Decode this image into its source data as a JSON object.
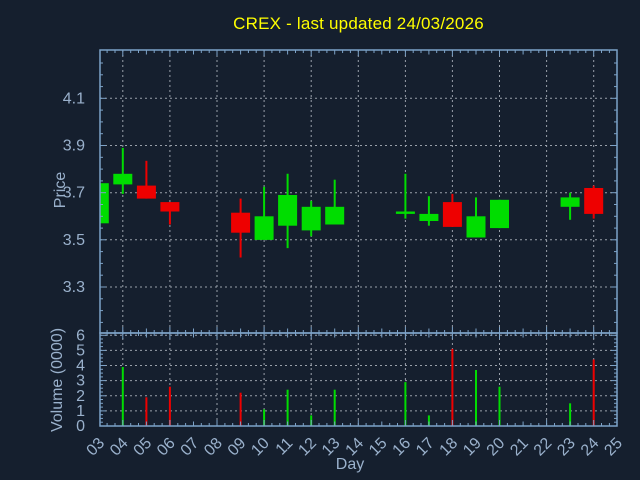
{
  "figure": {
    "background": "#151f2e"
  },
  "colors": {
    "title": "#ffff00",
    "text": "#9ab1cc",
    "axis": "#7da3c8",
    "grid": "#c6cbd4",
    "up": "#00dd00",
    "down": "#ee0000"
  },
  "chart_data": [
    {
      "type": "candlestick",
      "title": "CREX - last updated 24/03/2026",
      "xlabel": "Day",
      "ylabel": "Price",
      "ylim": [
        3.105,
        4.305
      ],
      "yticks": [
        3.3,
        3.5,
        3.7,
        3.9,
        4.1
      ],
      "xlim": [
        3.03,
        24.99
      ],
      "xtick_labels": [
        "03",
        "04",
        "05",
        "06",
        "07",
        "08",
        "09",
        "10",
        "11",
        "12",
        "13",
        "14",
        "15",
        "16",
        "17",
        "18",
        "19",
        "20",
        "21",
        "22",
        "23",
        "24",
        "25"
      ],
      "grid": "dashed, horizontal at yticks, vertical every 2 days",
      "candles": [
        {
          "day": 3,
          "open": 3.57,
          "high": 3.74,
          "low": 3.57,
          "close": 3.74,
          "dir": "up"
        },
        {
          "day": 4,
          "open": 3.735,
          "high": 3.89,
          "low": 3.695,
          "close": 3.78,
          "dir": "up"
        },
        {
          "day": 5,
          "open": 3.73,
          "high": 3.835,
          "low": 3.675,
          "close": 3.675,
          "dir": "down"
        },
        {
          "day": 6,
          "open": 3.66,
          "high": 3.66,
          "low": 3.565,
          "close": 3.62,
          "dir": "down"
        },
        {
          "day": 9,
          "open": 3.615,
          "high": 3.675,
          "low": 3.425,
          "close": 3.53,
          "dir": "down"
        },
        {
          "day": 10,
          "open": 3.5,
          "high": 3.725,
          "low": 3.5,
          "close": 3.6,
          "dir": "up"
        },
        {
          "day": 11,
          "open": 3.56,
          "high": 3.78,
          "low": 3.465,
          "close": 3.69,
          "dir": "up"
        },
        {
          "day": 12,
          "open": 3.54,
          "high": 3.665,
          "low": 3.515,
          "close": 3.64,
          "dir": "up"
        },
        {
          "day": 13,
          "open": 3.565,
          "high": 3.755,
          "low": 3.565,
          "close": 3.64,
          "dir": "up"
        },
        {
          "day": 16,
          "open": 3.61,
          "high": 3.78,
          "low": 3.59,
          "close": 3.62,
          "dir": "up"
        },
        {
          "day": 17,
          "open": 3.58,
          "high": 3.685,
          "low": 3.56,
          "close": 3.61,
          "dir": "up"
        },
        {
          "day": 18,
          "open": 3.66,
          "high": 3.695,
          "low": 3.555,
          "close": 3.555,
          "dir": "down"
        },
        {
          "day": 19,
          "open": 3.51,
          "high": 3.68,
          "low": 3.51,
          "close": 3.6,
          "dir": "up"
        },
        {
          "day": 20,
          "open": 3.55,
          "high": 3.67,
          "low": 3.55,
          "close": 3.67,
          "dir": "up"
        },
        {
          "day": 23,
          "open": 3.64,
          "high": 3.7,
          "low": 3.585,
          "close": 3.68,
          "dir": "up"
        },
        {
          "day": 24,
          "open": 3.72,
          "high": 3.73,
          "low": 3.59,
          "close": 3.61,
          "dir": "down"
        }
      ]
    },
    {
      "type": "bar",
      "ylabel": "Volume (0000)",
      "ylim": [
        0,
        6.15
      ],
      "yticks": [
        0,
        1,
        2,
        3,
        4,
        5,
        6
      ],
      "bars": [
        {
          "day": 4,
          "value": 3.9,
          "dir": "up"
        },
        {
          "day": 5,
          "value": 1.9,
          "dir": "down"
        },
        {
          "day": 6,
          "value": 2.6,
          "dir": "down"
        },
        {
          "day": 9,
          "value": 2.2,
          "dir": "down"
        },
        {
          "day": 10,
          "value": 1.1,
          "dir": "up"
        },
        {
          "day": 11,
          "value": 2.4,
          "dir": "up"
        },
        {
          "day": 12,
          "value": 0.7,
          "dir": "up"
        },
        {
          "day": 13,
          "value": 2.4,
          "dir": "up"
        },
        {
          "day": 16,
          "value": 2.9,
          "dir": "up"
        },
        {
          "day": 17,
          "value": 0.7,
          "dir": "up"
        },
        {
          "day": 18,
          "value": 5.1,
          "dir": "down"
        },
        {
          "day": 19,
          "value": 3.7,
          "dir": "up"
        },
        {
          "day": 20,
          "value": 2.6,
          "dir": "up"
        },
        {
          "day": 23,
          "value": 1.5,
          "dir": "up"
        },
        {
          "day": 24,
          "value": 4.4,
          "dir": "down"
        }
      ]
    }
  ]
}
